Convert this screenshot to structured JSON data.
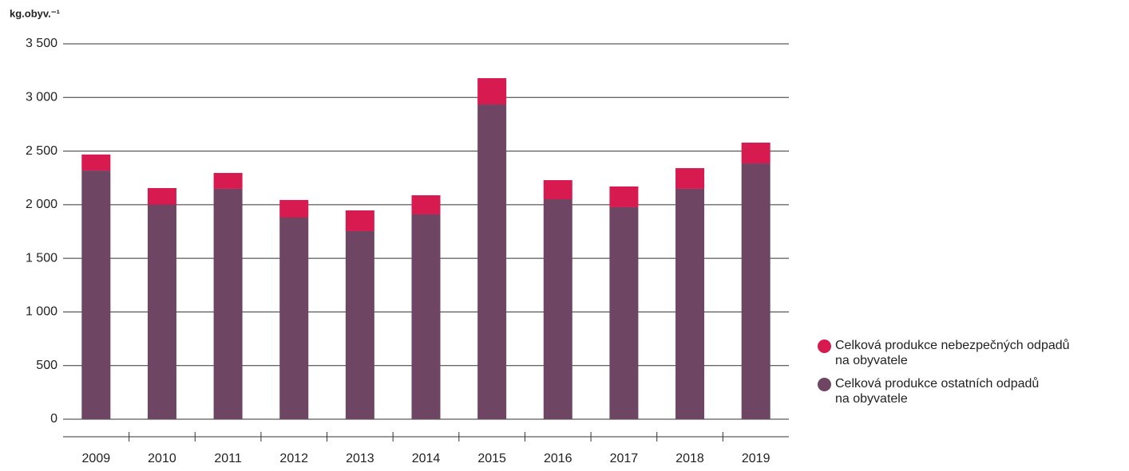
{
  "chart_data": {
    "type": "stacked_bar",
    "y_label": "kg.obyv.⁻¹",
    "categories": [
      "2009",
      "2010",
      "2011",
      "2012",
      "2013",
      "2014",
      "2015",
      "2016",
      "2017",
      "2018",
      "2019"
    ],
    "series": [
      {
        "name": "Celková produkce ostatních odpadů\nna obyvatele",
        "color": "#6e4562",
        "values": [
          2318,
          2000,
          2148,
          1880,
          1754,
          1910,
          2935,
          2051,
          1977,
          2148,
          2385
        ]
      },
      {
        "name": "Celková produkce nebezpečných odpadů\nna obyvatele",
        "color": "#d71a50",
        "values": [
          150,
          155,
          148,
          164,
          193,
          178,
          245,
          178,
          193,
          193,
          194
        ]
      }
    ],
    "ylim": [
      0,
      3500
    ],
    "yticks": [
      0,
      500,
      {
        "value": 1000,
        "label": "1 000"
      },
      {
        "value": 1500,
        "label": "1 500"
      },
      {
        "value": 2000,
        "label": "2 000"
      },
      {
        "value": 2500,
        "label": "2 500"
      },
      {
        "value": 3000,
        "label": "3 000"
      },
      {
        "value": 3500,
        "label": "3 500"
      }
    ],
    "grid": true
  }
}
